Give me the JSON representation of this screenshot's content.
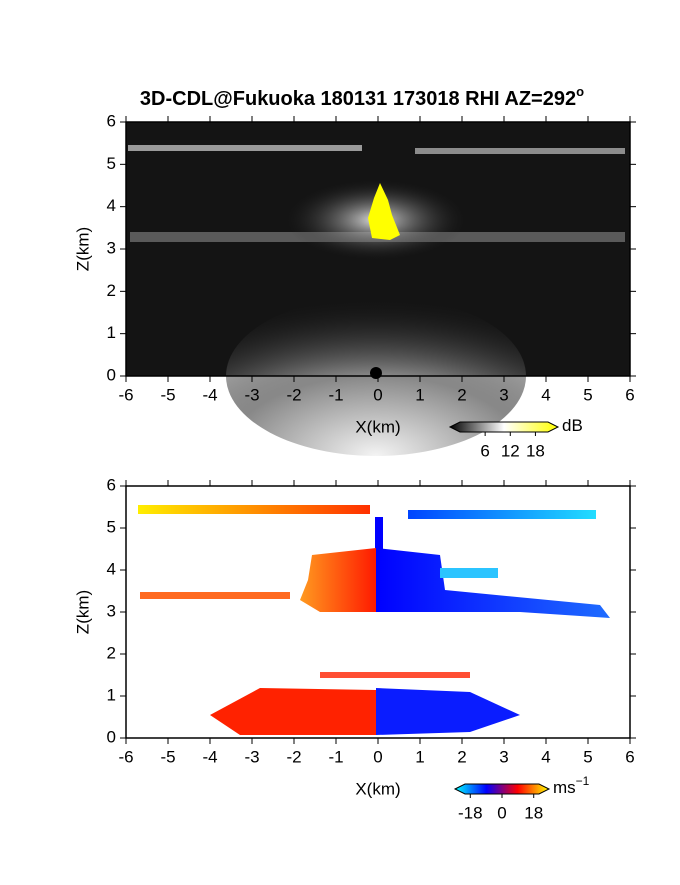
{
  "chart_data": [
    {
      "type": "image",
      "title": "3D-CDL@Fukuoka 180131 173018 RHI AZ=292",
      "title_sup": "o",
      "xlabel": "X(km)",
      "ylabel": "Z(km)",
      "xlim": [
        -6,
        6
      ],
      "ylim": [
        0,
        6
      ],
      "xticks": [
        -6,
        -5,
        -4,
        -3,
        -2,
        -1,
        0,
        1,
        2,
        3,
        4,
        5,
        6
      ],
      "yticks": [
        0,
        1,
        2,
        3,
        4,
        5,
        6
      ],
      "colorbar": {
        "label": "dB",
        "lim": [
          0,
          21
        ],
        "ticks": [
          6,
          12,
          18
        ],
        "colors": [
          "#000000",
          "#ffffff",
          "#ffff00"
        ]
      }
    },
    {
      "type": "image",
      "xlabel": "X(km)",
      "ylabel": "Z(km)",
      "xlim": [
        -6,
        6
      ],
      "ylim": [
        0,
        6
      ],
      "xticks": [
        -6,
        -5,
        -4,
        -3,
        -2,
        -1,
        0,
        1,
        2,
        3,
        4,
        5,
        6
      ],
      "yticks": [
        0,
        1,
        2,
        3,
        4,
        5,
        6
      ],
      "colorbar": {
        "label": "ms",
        "label_sup": "−1",
        "lim": [
          -21,
          21
        ],
        "ticks": [
          -18,
          0,
          18
        ],
        "colors": [
          "#00ffff",
          "#0000ff",
          "#ff0000",
          "#ffff00"
        ]
      }
    }
  ]
}
